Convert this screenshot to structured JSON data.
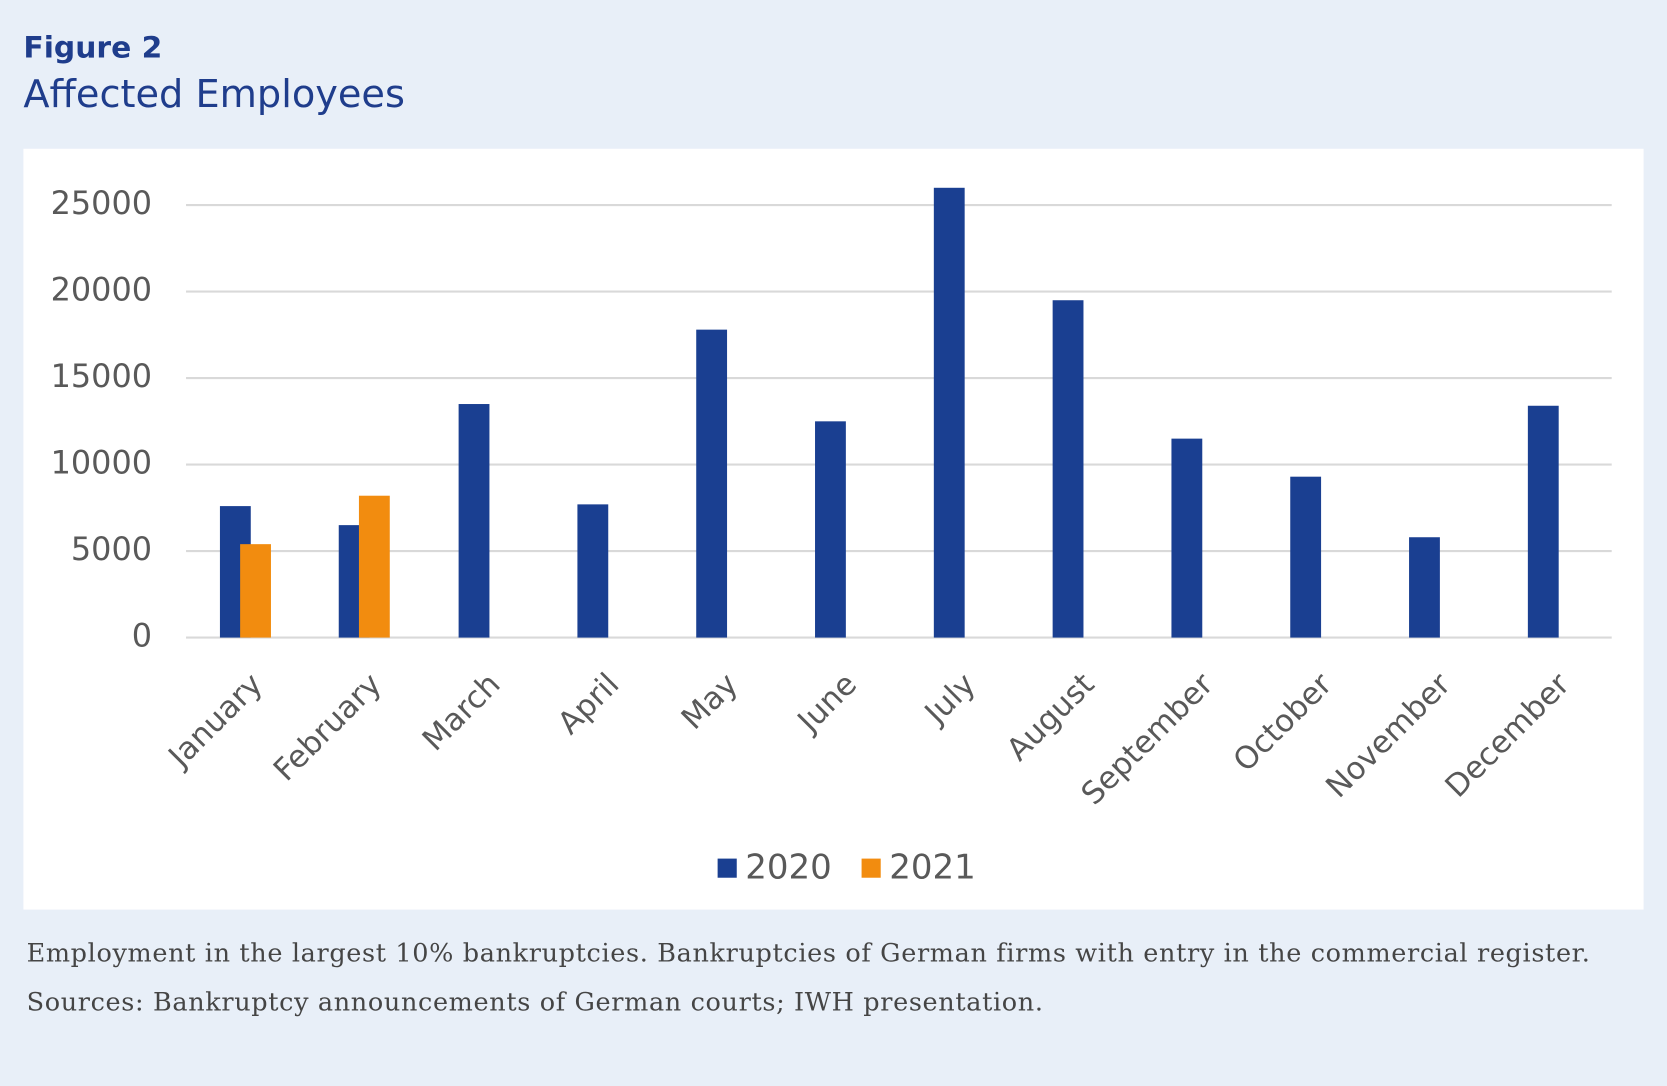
{
  "chart_data": {
    "type": "bar",
    "figure_label": "Figure 2",
    "title": "Affected Employees",
    "categories": [
      "January",
      "February",
      "March",
      "April",
      "May",
      "June",
      "July",
      "August",
      "September",
      "October",
      "November",
      "December"
    ],
    "series": [
      {
        "name": "2020",
        "color": "#1a3f91",
        "values": [
          7600,
          6500,
          13500,
          7700,
          17800,
          12500,
          26000,
          19500,
          11500,
          9300,
          5800,
          13400
        ]
      },
      {
        "name": "2021",
        "color": "#f28c0f",
        "values": [
          5400,
          8200,
          null,
          null,
          null,
          null,
          null,
          null,
          null,
          null,
          null,
          null
        ]
      }
    ],
    "ylim": [
      0,
      26000
    ],
    "yticks": [
      0,
      5000,
      10000,
      15000,
      20000,
      25000
    ],
    "grid": true,
    "legend": "bottom",
    "note": "Employment in the largest 10% bankruptcies. Bankruptcies of German firms with entry in the commercial register.",
    "source": "Sources: Bankruptcy announcements of German courts; IWH presentation."
  }
}
